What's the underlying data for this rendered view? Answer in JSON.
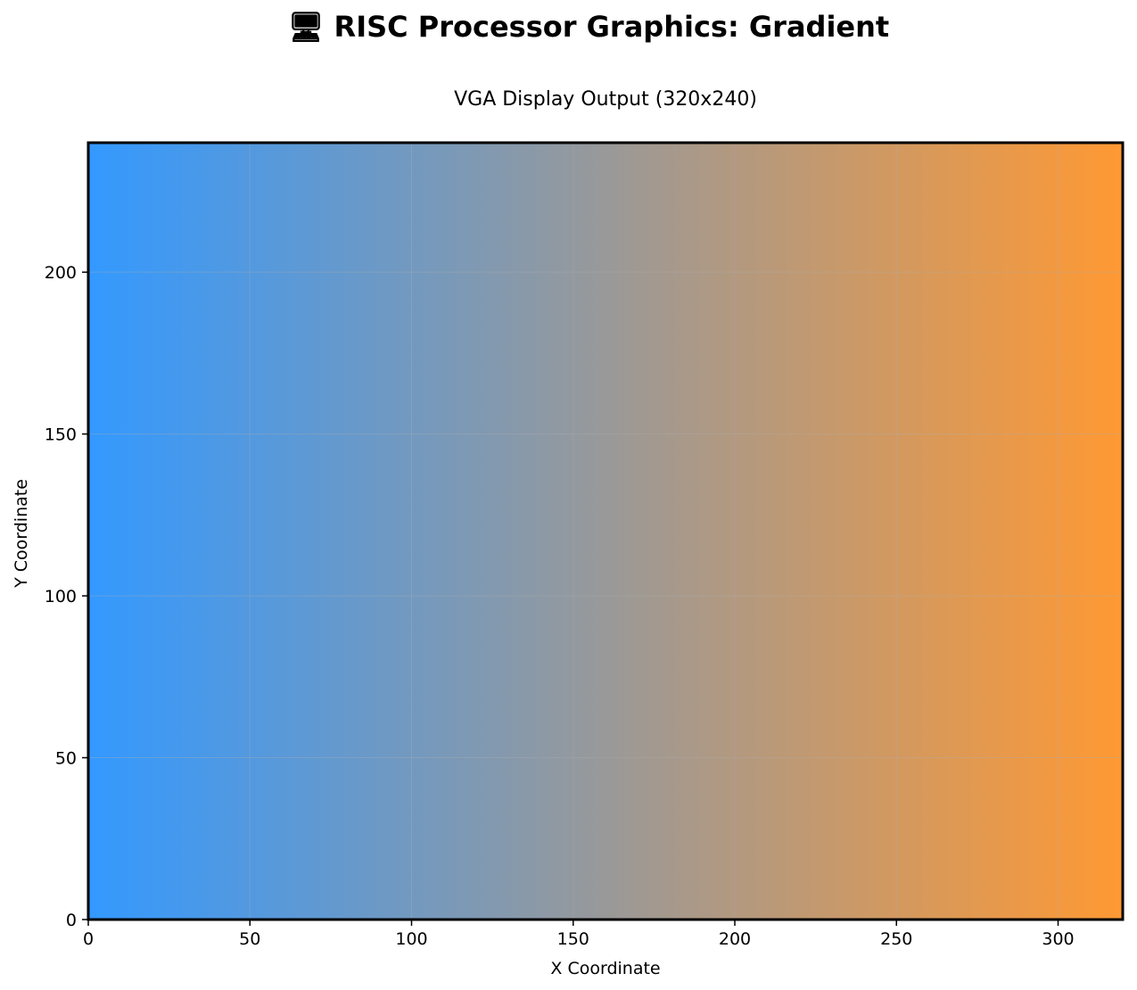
{
  "chart_data": {
    "type": "heatmap",
    "title": "🖥 RISC Processor Graphics: Gradient",
    "subtitle": "VGA Display Output (320x240)",
    "xlabel": "X Coordinate",
    "ylabel": "Y Coordinate",
    "xlim": [
      0,
      320
    ],
    "ylim": [
      0,
      240
    ],
    "x_ticks": [
      0,
      50,
      100,
      150,
      200,
      250,
      300
    ],
    "y_ticks": [
      0,
      50,
      100,
      150,
      200
    ],
    "grid": true,
    "gradient": {
      "direction": "horizontal",
      "from_x": 0,
      "to_x": 320,
      "start_color": "#3399ff",
      "end_color": "#ff9933"
    }
  }
}
